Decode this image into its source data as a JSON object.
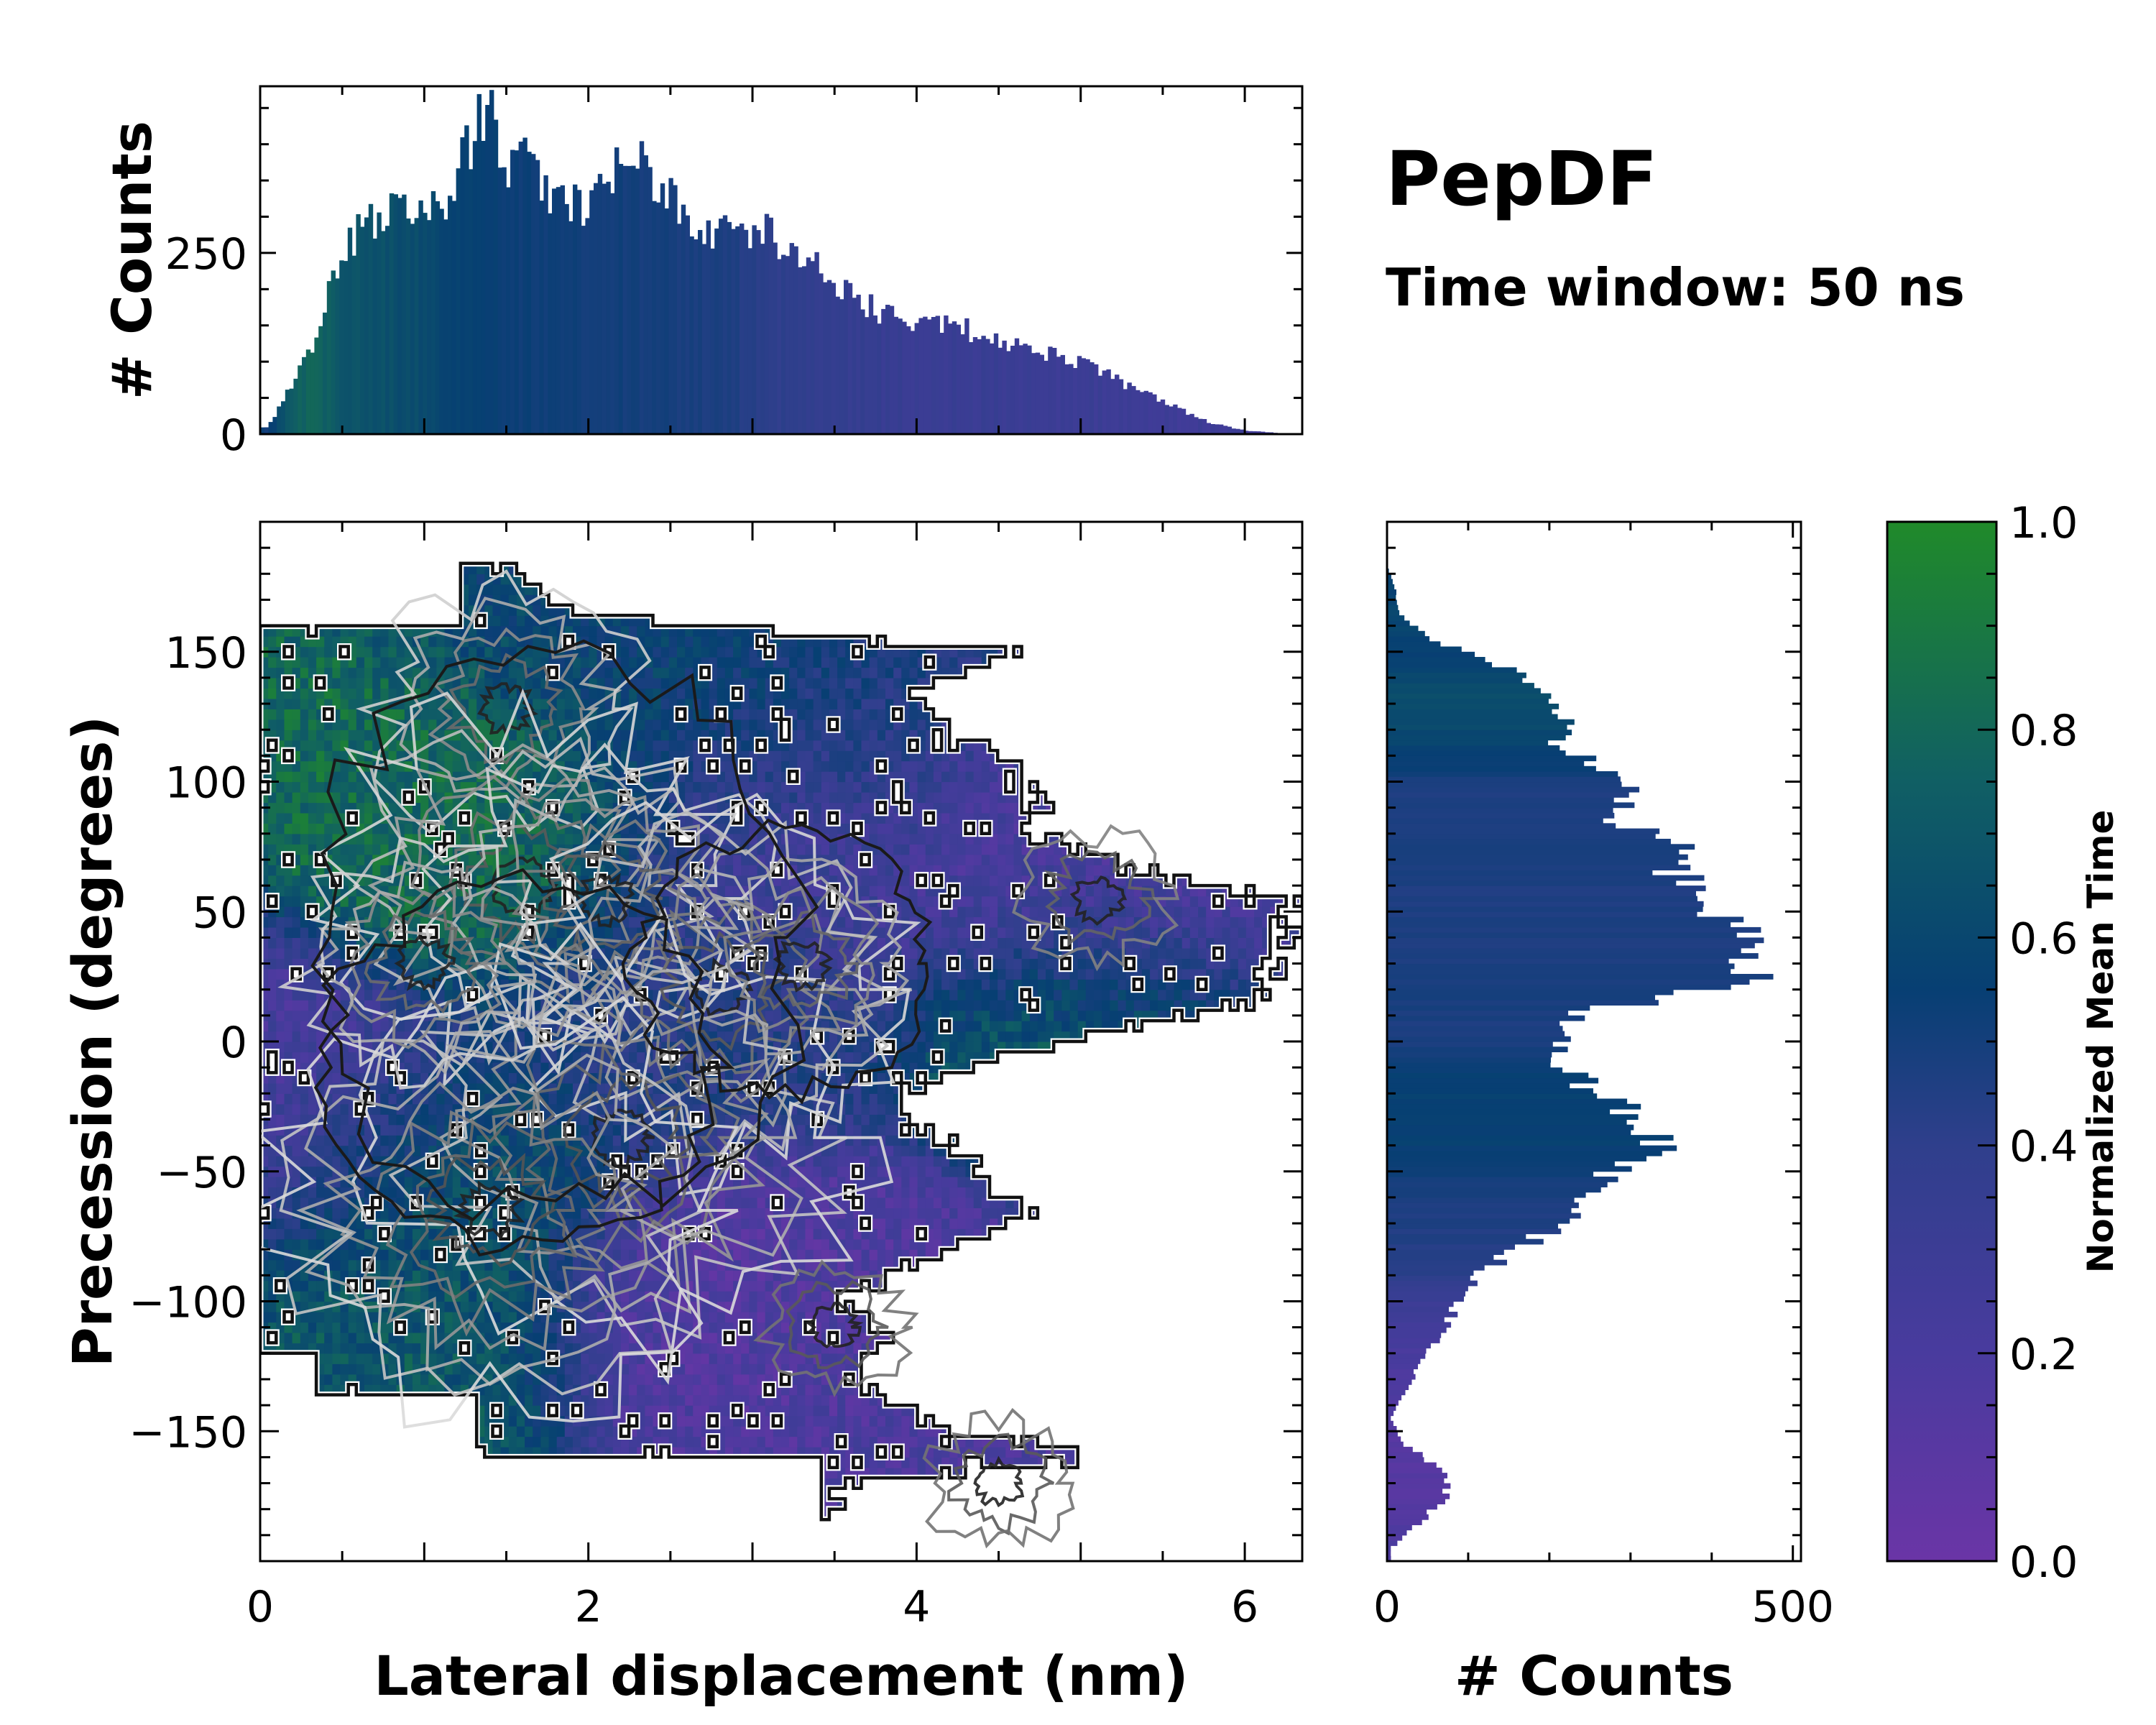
{
  "title": "PepDF",
  "subtitle": "Time window: 50 ns",
  "chart_data": [
    {
      "id": "main",
      "type": "heatmap",
      "xlabel": "Lateral displacement (nm)",
      "ylabel": "Precession (degrees)",
      "xlim": [
        0,
        6.35
      ],
      "ylim": [
        -200,
        200
      ],
      "xticks": [
        "0",
        "2",
        "4",
        "6"
      ],
      "xtick_values": [
        0,
        2,
        4,
        6
      ],
      "yticks": [
        "150",
        "100",
        "50",
        "0",
        "−50",
        "−100",
        "−150"
      ],
      "ytick_values": [
        150,
        100,
        50,
        0,
        -50,
        -100,
        -150
      ],
      "value": "Normalized Mean Time",
      "density_peaks": [
        {
          "x": 1.5,
          "y": 128,
          "w": 1.0
        },
        {
          "x": 1.6,
          "y": 60,
          "w": 1.4
        },
        {
          "x": 2.1,
          "y": 55,
          "w": 1.1
        },
        {
          "x": 2.8,
          "y": 20,
          "w": 1.3
        },
        {
          "x": 2.2,
          "y": -37,
          "w": 1.6
        },
        {
          "x": 1.4,
          "y": -65,
          "w": 1.5
        },
        {
          "x": 1.0,
          "y": 30,
          "w": 1.0
        },
        {
          "x": 3.3,
          "y": 30,
          "w": 0.8
        },
        {
          "x": 5.1,
          "y": 55,
          "w": 0.6
        },
        {
          "x": 3.5,
          "y": -110,
          "w": 0.5
        },
        {
          "x": 4.5,
          "y": -170,
          "w": 0.5
        }
      ],
      "time_regions": [
        {
          "x": 1.5,
          "y": 80,
          "t": 0.85
        },
        {
          "x": 1.0,
          "y": -60,
          "t": 0.72
        },
        {
          "x": 0.8,
          "y": -110,
          "t": 0.75
        },
        {
          "x": 2.5,
          "y": 140,
          "t": 0.62
        },
        {
          "x": 3.5,
          "y": 120,
          "t": 0.5
        },
        {
          "x": 3.1,
          "y": 75,
          "t": 0.25
        },
        {
          "x": 4.6,
          "y": 80,
          "t": 0.2
        },
        {
          "x": 5.6,
          "y": 50,
          "t": 0.12
        },
        {
          "x": 2.8,
          "y": -100,
          "t": 0.15
        },
        {
          "x": 4.0,
          "y": -125,
          "t": 0.18
        },
        {
          "x": 4.6,
          "y": -175,
          "t": 0.2
        },
        {
          "x": 2.6,
          "y": 10,
          "t": 0.45
        },
        {
          "x": 5.3,
          "y": 10,
          "t": 0.8
        },
        {
          "x": 0.1,
          "y": -30,
          "t": 0.2
        }
      ]
    },
    {
      "id": "top-histogram",
      "type": "bar",
      "ylabel": "# Counts",
      "ylim": [
        0,
        480
      ],
      "yticks": [
        "0",
        "250"
      ],
      "ytick_values": [
        0,
        250
      ],
      "x": [
        0.05,
        0.2,
        0.35,
        0.5,
        0.65,
        0.8,
        0.95,
        1.1,
        1.25,
        1.4,
        1.5,
        1.65,
        1.8,
        1.95,
        2.1,
        2.25,
        2.4,
        2.55,
        2.7,
        2.85,
        3.0,
        3.15,
        3.3,
        3.45,
        3.6,
        3.75,
        3.9,
        4.05,
        4.2,
        4.35,
        4.5,
        4.65,
        4.8,
        4.95,
        5.1,
        5.25,
        5.4,
        5.6,
        5.8,
        6.0,
        6.3
      ],
      "values": [
        10,
        70,
        140,
        250,
        290,
        315,
        320,
        315,
        390,
        450,
        380,
        370,
        320,
        310,
        350,
        390,
        340,
        310,
        290,
        270,
        280,
        270,
        250,
        220,
        190,
        170,
        155,
        150,
        155,
        140,
        130,
        125,
        110,
        100,
        90,
        70,
        55,
        35,
        15,
        5,
        0
      ],
      "mean_time": [
        0.55,
        0.8,
        0.82,
        0.75,
        0.72,
        0.7,
        0.68,
        0.65,
        0.62,
        0.6,
        0.58,
        0.57,
        0.56,
        0.55,
        0.55,
        0.54,
        0.53,
        0.52,
        0.5,
        0.48,
        0.45,
        0.4,
        0.38,
        0.36,
        0.35,
        0.34,
        0.33,
        0.33,
        0.32,
        0.32,
        0.32,
        0.31,
        0.3,
        0.3,
        0.3,
        0.3,
        0.3,
        0.28,
        0.28,
        0.27,
        0.27
      ]
    },
    {
      "id": "side-histogram",
      "type": "bar",
      "orientation": "horizontal",
      "xlabel": "# Counts",
      "xlim": [
        0,
        510
      ],
      "xticks": [
        "0",
        "500"
      ],
      "xtick_values": [
        0,
        500
      ],
      "y": [
        183,
        175,
        165,
        155,
        150,
        145,
        135,
        125,
        115,
        105,
        100,
        95,
        85,
        75,
        65,
        55,
        45,
        35,
        25,
        20,
        10,
        0,
        -10,
        -20,
        -30,
        -40,
        -50,
        -60,
        -70,
        -80,
        -90,
        -100,
        -110,
        -120,
        -130,
        -145,
        -155,
        -165,
        -175,
        -185,
        -195
      ],
      "values": [
        0,
        10,
        15,
        50,
        95,
        130,
        210,
        220,
        200,
        270,
        300,
        300,
        280,
        345,
        360,
        395,
        415,
        440,
        465,
        380,
        230,
        220,
        220,
        260,
        320,
        340,
        285,
        250,
        220,
        160,
        110,
        90,
        70,
        50,
        30,
        5,
        20,
        70,
        75,
        40,
        5
      ],
      "mean_time": [
        0.6,
        0.62,
        0.65,
        0.62,
        0.6,
        0.62,
        0.7,
        0.68,
        0.65,
        0.58,
        0.5,
        0.48,
        0.5,
        0.52,
        0.5,
        0.48,
        0.5,
        0.48,
        0.5,
        0.52,
        0.5,
        0.5,
        0.58,
        0.6,
        0.62,
        0.6,
        0.55,
        0.5,
        0.48,
        0.45,
        0.42,
        0.3,
        0.25,
        0.2,
        0.18,
        0.15,
        0.12,
        0.12,
        0.12,
        0.15,
        0.18
      ]
    },
    {
      "id": "colorbar",
      "type": "colorbar",
      "label": "Normalized Mean Time",
      "range": [
        0.0,
        1.0
      ],
      "ticks": [
        "0.0",
        "0.2",
        "0.4",
        "0.6",
        "0.8",
        "1.0"
      ],
      "tick_values": [
        0.0,
        0.2,
        0.4,
        0.6,
        0.8,
        1.0
      ],
      "colormap": [
        "#6a35a6",
        "#493b9e",
        "#2f3f8c",
        "#073f73",
        "#105f64",
        "#208a2a"
      ]
    }
  ]
}
